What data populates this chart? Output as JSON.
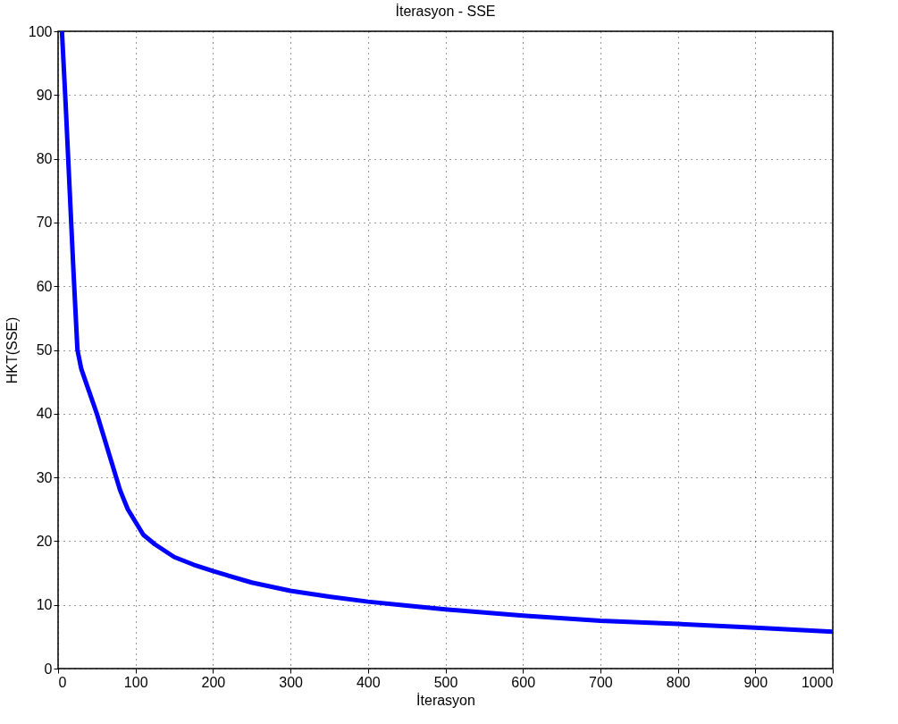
{
  "chart_data": {
    "type": "line",
    "title": "İterasyon - SSE",
    "xlabel": "İterasyon",
    "ylabel": "HKT(SSE)",
    "x": [
      5,
      10,
      15,
      20,
      25,
      30,
      40,
      50,
      60,
      70,
      80,
      90,
      100,
      110,
      125,
      150,
      175,
      200,
      250,
      300,
      350,
      400,
      450,
      500,
      600,
      700,
      800,
      900,
      1000
    ],
    "series": [
      {
        "color": "#0000ff",
        "values": [
          100,
          88,
          75,
          62,
          50,
          47,
          43.5,
          40,
          36,
          32,
          28,
          25,
          23,
          21,
          19.5,
          17.5,
          16.3,
          15.3,
          13.5,
          12.2,
          11.3,
          10.5,
          9.9,
          9.3,
          8.3,
          7.5,
          7,
          6.4,
          5.8
        ]
      }
    ],
    "xlim": [
      0,
      1000
    ],
    "xticks": [
      0,
      100,
      200,
      300,
      400,
      500,
      600,
      700,
      800,
      900,
      1000
    ],
    "ylim": [
      0,
      100
    ],
    "yticks": [
      0,
      10,
      20,
      30,
      40,
      50,
      60,
      70,
      80,
      90,
      100
    ],
    "grid": true,
    "line_style": "solid"
  }
}
